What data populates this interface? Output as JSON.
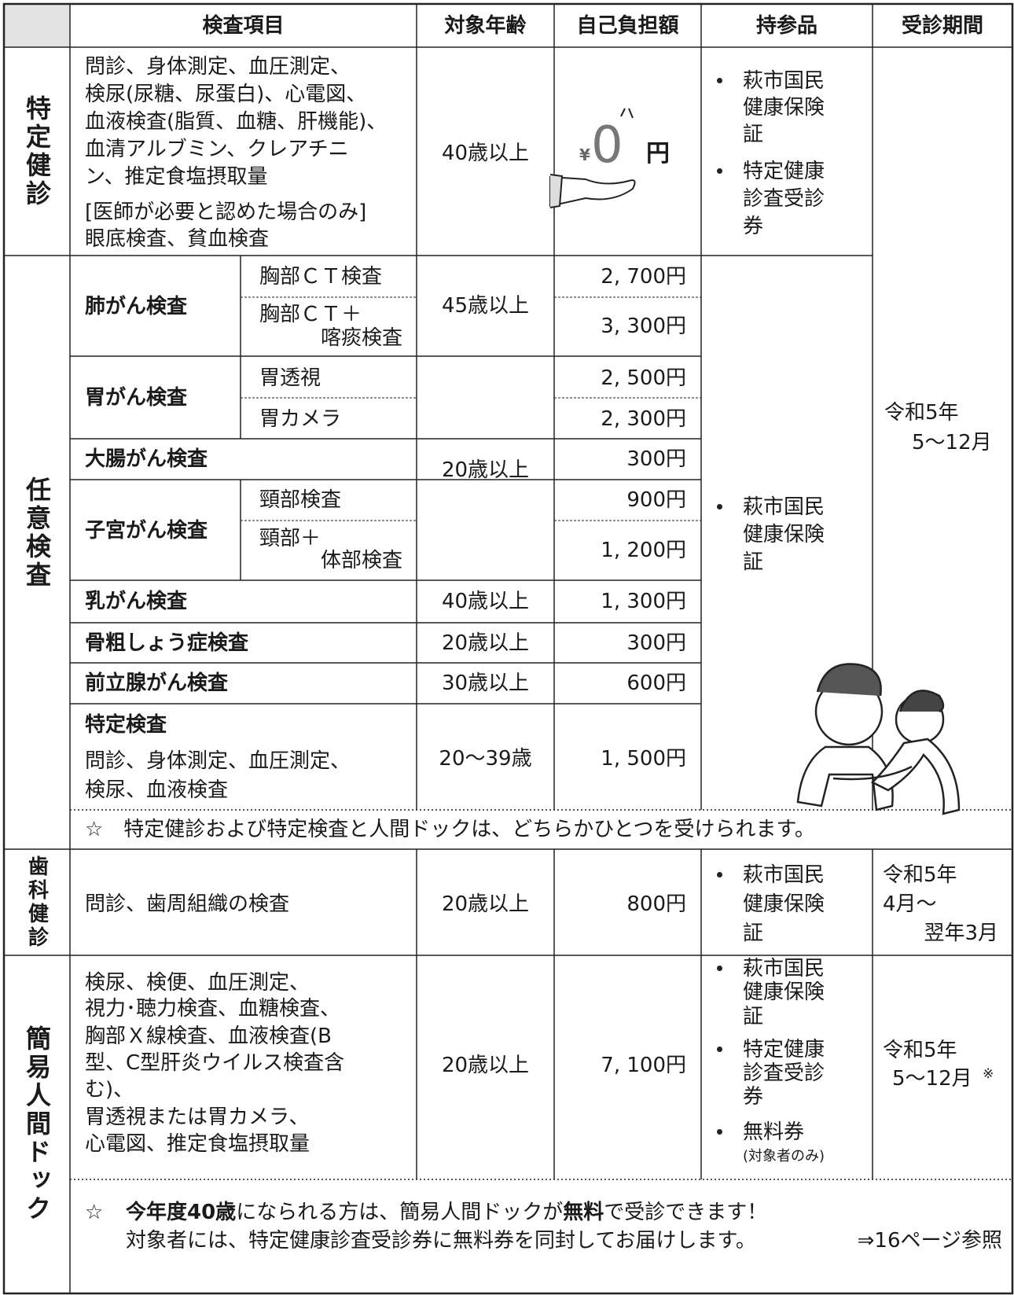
{
  "header": [
    "検査項目",
    "対象年齢",
    "自己負担額",
    "持参品",
    "受診期間"
  ],
  "tokutei_kenshin": {
    "label": "特定健診",
    "items": [
      "問診、身体測定、血圧測定、",
      "検尿(尿糖、尿蛋白)、心電図、",
      "血液検査(脂質、血糖、肝機能)、",
      "血清アルブミン、クレアチニ",
      "ン、推定食塩摂取量",
      "[医師が必要と認めた場合のみ]",
      "眼底検査、貧血検査"
    ],
    "age": "40歳以上",
    "fee": {
      "symbol": "¥",
      "amount": "0",
      "unit": "円"
    },
    "bring": [
      [
        "萩市国民",
        "健康保険",
        "証"
      ],
      [
        "特定健康",
        "診査受診",
        "券"
      ]
    ]
  },
  "period_main": [
    "令和5年",
    "5〜12月"
  ],
  "nini_kensa": {
    "label": "任意検査",
    "bring": [
      "萩市国民",
      "健康保険",
      "証"
    ],
    "lung": {
      "name": "肺がん検査",
      "age": "45歳以上",
      "subs": [
        {
          "name": [
            "胸部ＣＴ検査"
          ],
          "fee": "2, 700円"
        },
        {
          "name": [
            "胸部ＣＴ＋",
            "喀痰検査"
          ],
          "fee": "3, 300円"
        }
      ]
    },
    "stomach": {
      "name": "胃がん検査",
      "age": "20歳以上",
      "subs": [
        {
          "name": [
            "胃透視"
          ],
          "fee": "2, 500円"
        },
        {
          "name": [
            "胃カメラ"
          ],
          "fee": "2, 300円"
        }
      ]
    },
    "colon": {
      "name": "大腸がん検査",
      "fee": "300円"
    },
    "uterus": {
      "name": "子宮がん検査",
      "subs": [
        {
          "name": [
            "頸部検査"
          ],
          "fee": "900円"
        },
        {
          "name": [
            "頸部＋",
            "体部検査"
          ],
          "fee": "1, 200円"
        }
      ]
    },
    "breast": {
      "name": "乳がん検査",
      "age": "40歳以上",
      "fee": "1, 300円"
    },
    "bone": {
      "name": "骨粗しょう症検査",
      "age": "20歳以上",
      "fee": "300円"
    },
    "prostate": {
      "name": "前立腺がん検査",
      "age": "30歳以上",
      "fee": "600円"
    },
    "tokutei_kensa": {
      "name": "特定検査",
      "items": [
        "問診、身体測定、血圧測定、",
        "検尿、血液検査"
      ],
      "age": "20〜39歳",
      "fee": "1, 500円"
    },
    "note": "☆　特定健診および特定検査と人間ドックは、どちらかひとつを受けられます。"
  },
  "shika_kenshin": {
    "label": "歯科健診",
    "item": "問診、歯周組織の検査",
    "age": "20歳以上",
    "fee": "800円",
    "bring": [
      "萩市国民",
      "健康保険",
      "証"
    ],
    "period": [
      "令和5年",
      "4月〜",
      "翌年3月"
    ]
  },
  "ningen_dock": {
    "label": "簡易人間ドック",
    "items": [
      "検尿、検便、血圧測定、",
      "視力･聴力検査、血糖検査、",
      "胸部Ｘ線検査、血液検査(B",
      "型、C型肝炎ウイルス検査含",
      "む)、",
      "胃透視または胃カメラ、",
      "心電図、推定食塩摂取量"
    ],
    "age": "20歳以上",
    "fee": "7, 100円",
    "bring": [
      [
        "萩市国民",
        "健康保険",
        "証"
      ],
      [
        "特定健康",
        "診査受診",
        "券"
      ],
      [
        "無料券"
      ]
    ],
    "bring_note": "(対象者のみ)",
    "period": [
      "令和5年",
      "5〜12月",
      "※"
    ],
    "note": {
      "star": "☆",
      "segments": [
        {
          "text": "今年度40歳",
          "bold": true
        },
        {
          "text": "になられる方は、簡易人間ドックが",
          "bold": false
        },
        {
          "text": "無料",
          "bold": true
        },
        {
          "text": "で受診できます！",
          "bold": false
        }
      ],
      "line2": "対象者には、特定健康診査受診券に無料券を同封してお届けします。",
      "ref": "⇒16ページ参照"
    }
  }
}
